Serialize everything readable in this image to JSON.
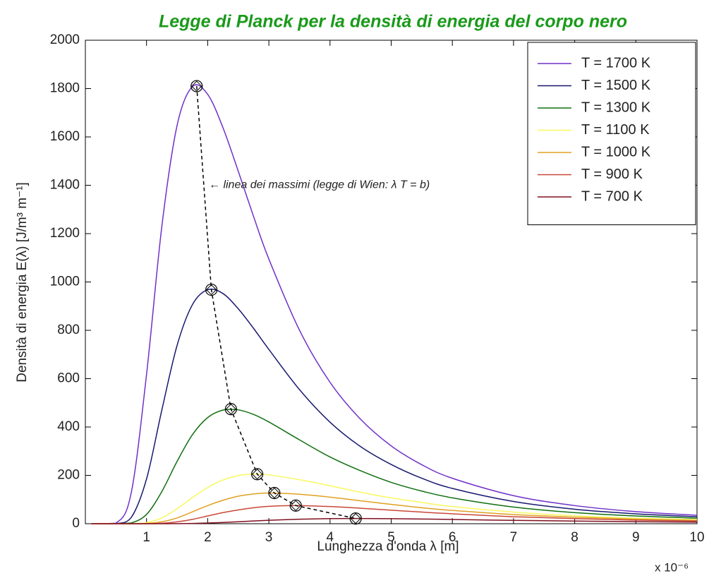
{
  "chart_data": {
    "type": "line",
    "title": "Legge di Planck per la densità di energia del corpo nero",
    "xlabel": "Lunghezza d'onda λ  [m]",
    "ylabel": "Densità di energia E(λ) [J/m³ m⁻¹]",
    "x_multiplier": "x 10⁻⁶",
    "annotation": "← linea dei massimi (legge di Wien: λ T = b)",
    "xlim": [
      0,
      10
    ],
    "ylim": [
      0,
      2000
    ],
    "xticks": [
      1,
      2,
      3,
      4,
      5,
      6,
      7,
      8,
      9,
      10
    ],
    "yticks": [
      0,
      200,
      400,
      600,
      800,
      1000,
      1200,
      1400,
      1600,
      1800,
      2000
    ],
    "legend": "upper right",
    "x": [
      0.1,
      0.5,
      0.75,
      1,
      1.25,
      1.5,
      1.75,
      2,
      2.25,
      2.5,
      2.75,
      3,
      3.5,
      4,
      4.5,
      5,
      5.5,
      6,
      7,
      8,
      9,
      10
    ],
    "series": [
      {
        "name": "T = 1700 K",
        "color": "#7030c8",
        "values": [
          0,
          2.37,
          128,
          617,
          1229,
          1648,
          1808,
          1776,
          1638,
          1458,
          1271,
          1095,
          801,
          585,
          432,
          322,
          244,
          188,
          116,
          75,
          50,
          35
        ]
      },
      {
        "name": "T = 1500 K",
        "color": "#181870",
        "values": [
          0,
          0.22,
          25.7,
          185,
          470,
          738,
          906,
          968,
          952,
          889,
          808,
          721,
          555,
          420,
          319,
          245,
          188,
          146,
          92,
          60,
          41,
          29
        ]
      },
      {
        "name": "T = 1300 K",
        "color": "#107010",
        "values": [
          0,
          0.01,
          3.2,
          38.5,
          133,
          258,
          368,
          439,
          470,
          471,
          452,
          421,
          347,
          276,
          219,
          171,
          135,
          107,
          69,
          46,
          32,
          23
        ]
      },
      {
        "name": "T = 1100 K",
        "color": "#f8f860",
        "values": [
          0,
          0,
          0.18,
          4.5,
          24,
          62,
          108,
          150,
          181,
          199,
          205,
          202,
          182,
          157,
          130,
          107,
          88,
          71,
          48,
          33,
          23,
          17
        ]
      },
      {
        "name": "T = 1000 K",
        "color": "#e0a020",
        "values": [
          0,
          0,
          0.03,
          1.1,
          7.9,
          24,
          49,
          75,
          97,
          114,
          123,
          127,
          122,
          110,
          95,
          80,
          66,
          55,
          38,
          27,
          19,
          14
        ]
      },
      {
        "name": "T = 900 K",
        "color": "#c84838",
        "values": [
          0,
          0,
          0,
          0.2,
          2.0,
          7.8,
          18,
          32,
          46,
          57,
          66,
          72,
          75,
          71,
          64,
          56,
          48,
          41,
          29,
          21,
          15,
          11
        ]
      },
      {
        "name": "T = 700 K",
        "color": "#801020",
        "values": [
          0,
          0,
          0,
          0,
          0.04,
          0.3,
          1.1,
          2.8,
          5.2,
          8.2,
          11.3,
          14.2,
          18.7,
          21.0,
          21.5,
          20.7,
          19.3,
          17.5,
          13.9,
          10.8,
          8.3,
          6.4
        ]
      }
    ],
    "maxima": {
      "x": [
        1.82,
        2.06,
        2.38,
        2.81,
        3.09,
        3.44,
        4.42
      ],
      "values": [
        1810,
        968,
        474,
        205,
        127,
        75,
        21.5
      ],
      "color": "#000000"
    }
  }
}
